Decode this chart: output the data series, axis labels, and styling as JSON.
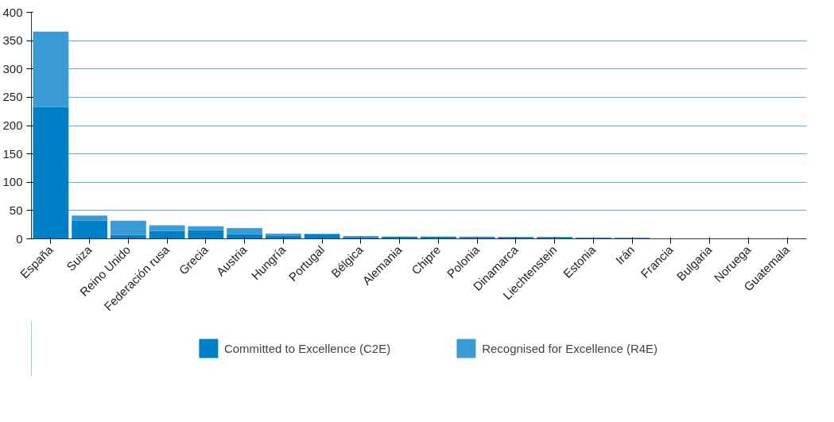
{
  "chart_data": {
    "type": "bar",
    "stacked": true,
    "categories": [
      "España",
      "Suiza",
      "Reino Unido",
      "Federación rusa",
      "Grecia",
      "Austria",
      "Hungría",
      "Portugal",
      "Bélgica",
      "Alemania",
      "Chipre",
      "Polonia",
      "Dinamarca",
      "Liechtenstein",
      "Estonia",
      "Irán",
      "Francia",
      "Bulgaria",
      "Noruega",
      "Guatemala"
    ],
    "series": [
      {
        "name": "Committed to Excellence (C2E)",
        "color": "#0080c6",
        "values": [
          233,
          32,
          7,
          14,
          15,
          8,
          5,
          8,
          3,
          4,
          4,
          2,
          3,
          3,
          2,
          0,
          null,
          null,
          null,
          null
        ]
      },
      {
        "name": "Recognised for Excellence (R4E)",
        "color": "#3a9bd5",
        "values": [
          133,
          9,
          25,
          10,
          7,
          11,
          4,
          1,
          2,
          0,
          0,
          2,
          0,
          0,
          0,
          2,
          0,
          0,
          0,
          0
        ]
      }
    ],
    "ylim": [
      0,
      400
    ],
    "yticks": [
      0,
      50,
      100,
      150,
      200,
      250,
      300,
      350,
      400
    ],
    "grid": "y",
    "legend": "bottom"
  }
}
